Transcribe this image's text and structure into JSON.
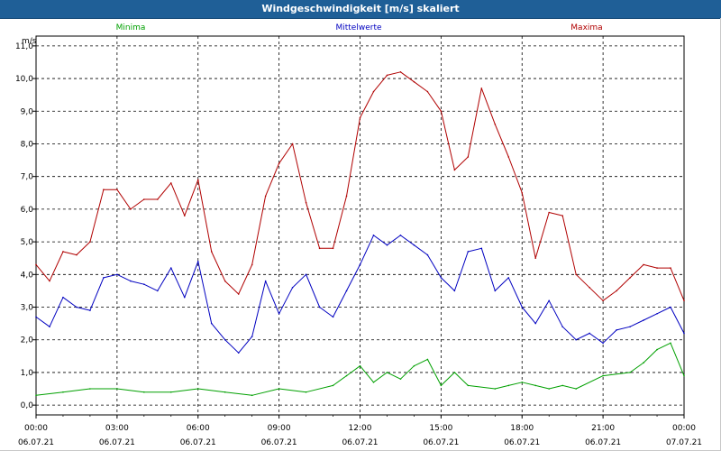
{
  "window": {
    "title": "Windgeschwindigkeit [m/s] skaliert"
  },
  "chart_data": {
    "type": "line",
    "title": "Windgeschwindigkeit [m/s] skaliert",
    "ylabel": "m/s",
    "ylim": [
      -0.3,
      11.3
    ],
    "y_ticks": [
      "0,0",
      "1,0",
      "2,0",
      "3,0",
      "4,0",
      "5,0",
      "6,0",
      "7,0",
      "8,0",
      "9,0",
      "10,0",
      "11,0"
    ],
    "x_ticks": [
      {
        "time": "00:00",
        "date": "06.07.21"
      },
      {
        "time": "03:00",
        "date": "06.07.21"
      },
      {
        "time": "06:00",
        "date": "06.07.21"
      },
      {
        "time": "09:00",
        "date": "06.07.21"
      },
      {
        "time": "12:00",
        "date": "06.07.21"
      },
      {
        "time": "15:00",
        "date": "06.07.21"
      },
      {
        "time": "18:00",
        "date": "06.07.21"
      },
      {
        "time": "21:00",
        "date": "06.07.21"
      },
      {
        "time": "00:00",
        "date": "07.07.21"
      }
    ],
    "x_hours_range": [
      0,
      24
    ],
    "grid": true,
    "series": [
      {
        "name": "Minima",
        "color": "#00a000",
        "legend_position": "left",
        "x": [
          0,
          1,
          2,
          3,
          4,
          5,
          6,
          7,
          8,
          9,
          10,
          11,
          11.5,
          12,
          12.5,
          13,
          13.5,
          14,
          14.5,
          15,
          15.5,
          16,
          17,
          17.5,
          18,
          18.5,
          19,
          19.5,
          20,
          21,
          22,
          22.5,
          23,
          23.5,
          24
        ],
        "y": [
          0.3,
          0.4,
          0.5,
          0.5,
          0.4,
          0.4,
          0.5,
          0.4,
          0.3,
          0.5,
          0.4,
          0.6,
          0.9,
          1.2,
          0.7,
          1.0,
          0.8,
          1.2,
          1.4,
          0.6,
          1.0,
          0.6,
          0.5,
          0.6,
          0.7,
          0.6,
          0.5,
          0.6,
          0.5,
          0.9,
          1.0,
          1.3,
          1.7,
          1.9,
          0.9
        ]
      },
      {
        "name": "Mittelwerte",
        "color": "#0000c0",
        "legend_position": "center",
        "x": [
          0,
          0.5,
          1,
          1.5,
          2,
          2.5,
          3,
          3.5,
          4,
          4.5,
          5,
          5.5,
          6,
          6.5,
          7,
          7.5,
          8,
          8.5,
          9,
          9.5,
          10,
          10.5,
          11,
          11.5,
          12,
          12.5,
          13,
          13.5,
          14,
          14.5,
          15,
          15.5,
          16,
          16.5,
          17,
          17.5,
          18,
          18.5,
          19,
          19.5,
          20,
          20.5,
          21,
          21.5,
          22,
          22.5,
          23,
          23.5,
          24
        ],
        "y": [
          2.7,
          2.4,
          3.3,
          3.0,
          2.9,
          3.9,
          4.0,
          3.8,
          3.7,
          3.5,
          4.2,
          3.3,
          4.4,
          2.5,
          2.0,
          1.6,
          2.1,
          3.8,
          2.8,
          3.6,
          4.0,
          3.0,
          2.7,
          3.5,
          4.3,
          5.2,
          4.9,
          5.2,
          4.9,
          4.6,
          3.9,
          3.5,
          4.7,
          4.8,
          3.5,
          3.9,
          3.0,
          2.5,
          3.2,
          2.4,
          2.0,
          2.2,
          1.9,
          2.3,
          2.4,
          2.6,
          2.8,
          3.0,
          2.2
        ]
      },
      {
        "name": "Maxima",
        "color": "#b00000",
        "legend_position": "right",
        "x": [
          0,
          0.5,
          1,
          1.5,
          2,
          2.5,
          3,
          3.5,
          4,
          4.5,
          5,
          5.5,
          6,
          6.5,
          7,
          7.5,
          8,
          8.5,
          9,
          9.5,
          10,
          10.5,
          11,
          11.5,
          12,
          12.5,
          13,
          13.5,
          14,
          14.5,
          15,
          15.5,
          16,
          16.5,
          17,
          17.5,
          18,
          18.5,
          19,
          19.5,
          20,
          20.5,
          21,
          21.5,
          22,
          22.5,
          23,
          23.5,
          24
        ],
        "y": [
          4.3,
          3.8,
          4.7,
          4.6,
          5.0,
          6.6,
          6.6,
          6.0,
          6.3,
          6.3,
          6.8,
          5.8,
          6.9,
          4.7,
          3.8,
          3.4,
          4.3,
          6.4,
          7.4,
          8.0,
          6.2,
          4.8,
          4.8,
          6.4,
          8.8,
          9.6,
          10.1,
          10.2,
          9.9,
          9.6,
          9.0,
          7.2,
          7.6,
          9.7,
          8.6,
          7.6,
          6.5,
          4.5,
          5.9,
          5.8,
          4.0,
          3.6,
          3.2,
          3.5,
          3.9,
          4.3,
          4.2,
          4.2,
          3.2
        ]
      }
    ]
  }
}
